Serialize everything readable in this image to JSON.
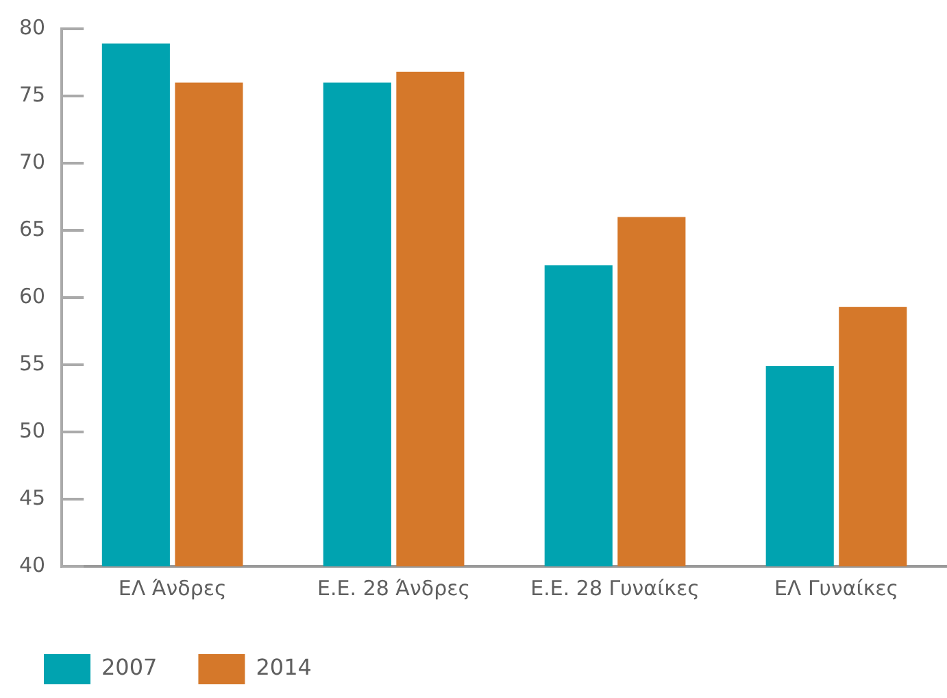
{
  "chart_data": {
    "type": "bar",
    "categories": [
      "ΕΛ Άνδρες",
      "Ε.Ε. 28 Άνδρες",
      "Ε.Ε. 28 Γυναίκες",
      "ΕΛ Γυναίκες"
    ],
    "series": [
      {
        "name": "2007",
        "color": "#00a3b0",
        "values": [
          78.9,
          76.0,
          62.4,
          54.9
        ]
      },
      {
        "name": "2014",
        "color": "#d5782a",
        "values": [
          76.0,
          76.8,
          66.0,
          59.3
        ]
      }
    ],
    "ylim": [
      40,
      80
    ],
    "yticks": [
      40,
      45,
      50,
      55,
      60,
      65,
      70,
      75,
      80
    ],
    "legend": "bottom left"
  }
}
